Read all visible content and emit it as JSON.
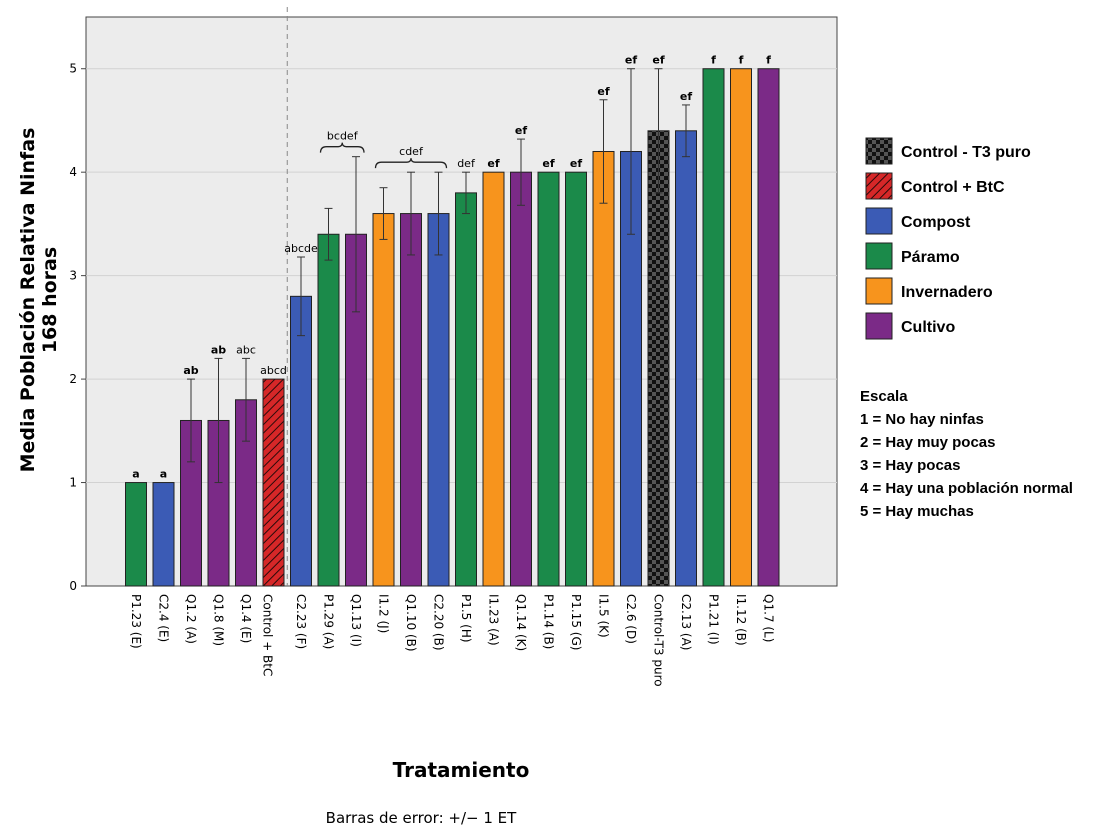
{
  "chart_data": {
    "type": "bar",
    "xlabel": "Tratamiento",
    "ylabel": "Media Población Relativa Ninfas",
    "ylabel_line2": "168 horas",
    "footnote": "Barras de error: +/− 1 ET",
    "ylim": [
      0,
      5.5
    ],
    "yticks": [
      "0",
      "1",
      "2",
      "3",
      "4",
      "5"
    ],
    "grid": true,
    "categories": [
      "P1.23 (E)",
      "C2.4 (E)",
      "Q1.2 (A)",
      "Q1.8 (M)",
      "Q1.4 (E)",
      "Control + BtC",
      "C2.23 (F)",
      "P1.29 (A)",
      "Q1.13 (I)",
      "I1.2 (J)",
      "Q1.10 (B)",
      "C2.20 (B)",
      "P1.5 (H)",
      "I1.23 (A)",
      "Q1.14 (K)",
      "P1.14 (B)",
      "P1.15 (G)",
      "I1.5 (K)",
      "C2.6 (D)",
      "Control-T3 puro",
      "C2.13 (A)",
      "P1.21 (I)",
      "I1.12 (B)",
      "Q1.7 (L)"
    ],
    "values": [
      1.0,
      1.0,
      1.6,
      1.6,
      1.8,
      2.0,
      2.8,
      3.4,
      3.4,
      3.6,
      3.6,
      3.6,
      3.8,
      4.0,
      4.0,
      4.0,
      4.0,
      4.2,
      4.2,
      4.4,
      4.4,
      5.0,
      5.0,
      5.0
    ],
    "errors": [
      0,
      0,
      0.4,
      0.6,
      0.4,
      0,
      0.38,
      0.25,
      0.75,
      0.25,
      0.4,
      0.4,
      0.2,
      0,
      0.32,
      0,
      0,
      0.5,
      0.8,
      0.6,
      0.25,
      0,
      0,
      0
    ],
    "groups": [
      "paramo",
      "compost",
      "cultivo",
      "cultivo",
      "cultivo",
      "control_btc",
      "compost",
      "paramo",
      "cultivo",
      "invernadero",
      "cultivo",
      "compost",
      "paramo",
      "invernadero",
      "cultivo",
      "paramo",
      "paramo",
      "invernadero",
      "compost",
      "control_t3",
      "compost",
      "paramo",
      "invernadero",
      "cultivo"
    ],
    "significance": [
      "a",
      "a",
      "ab",
      "ab",
      "abc",
      "abcd",
      "abcde",
      "",
      "",
      "",
      "",
      "",
      "def",
      "ef",
      "ef",
      "ef",
      "ef",
      "ef",
      "ef",
      "ef",
      "ef",
      "f",
      "f",
      "f"
    ],
    "bracket_labels": [
      {
        "label": "bcdef",
        "from": 7,
        "to": 8
      },
      {
        "label": "cdef",
        "from": 9,
        "to": 11
      }
    ],
    "divider_after_index": 5,
    "legend_placement": "right",
    "legend": [
      {
        "key": "control_t3",
        "label": "Control - T3 puro",
        "color": "#333333",
        "pattern": "checker"
      },
      {
        "key": "control_btc",
        "label": "Control + BtC",
        "color": "#d62728",
        "pattern": "hatch"
      },
      {
        "key": "compost",
        "label": "Compost",
        "color": "#3b5bb5",
        "pattern": "solid"
      },
      {
        "key": "paramo",
        "label": "Páramo",
        "color": "#1b8a4a",
        "pattern": "solid"
      },
      {
        "key": "invernadero",
        "label": "Invernadero",
        "color": "#f7941d",
        "pattern": "solid"
      },
      {
        "key": "cultivo",
        "label": "Cultivo",
        "color": "#7b2a87",
        "pattern": "solid"
      }
    ],
    "scale_title": "Escala",
    "scale_items": [
      "1 = No hay ninfas",
      "2 = Hay muy pocas",
      "3 = Hay pocas",
      "4 = Hay una población normal",
      "5 = Hay muchas"
    ]
  }
}
